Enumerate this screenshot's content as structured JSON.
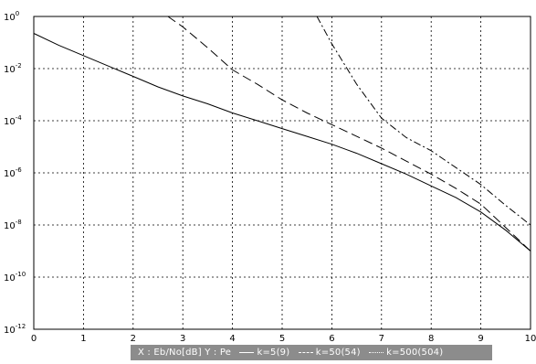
{
  "chart_data": {
    "type": "line",
    "y_scale": "log",
    "xlim": [
      0,
      10
    ],
    "ylim_exponent": [
      -12,
      0
    ],
    "grid": true,
    "x_ticks": [
      "0",
      "1",
      "2",
      "3",
      "4",
      "5",
      "6",
      "7",
      "8",
      "9",
      "10"
    ],
    "y_ticks": [
      {
        "base": "10",
        "exp": "0"
      },
      {
        "base": "10",
        "exp": "-2"
      },
      {
        "base": "10",
        "exp": "-4"
      },
      {
        "base": "10",
        "exp": "-6"
      },
      {
        "base": "10",
        "exp": "-8"
      },
      {
        "base": "10",
        "exp": "-10"
      },
      {
        "base": "10",
        "exp": "-12"
      }
    ],
    "legend_text": {
      "axes": "X : Eb/No[dB]   Y : Pe",
      "s1": "k=5(9)",
      "s2": "k=50(54)",
      "s3": "k=500(504)"
    },
    "series": [
      {
        "name": "k=5(9)",
        "style": "solid",
        "x": [
          0,
          0.5,
          1,
          1.5,
          2,
          2.5,
          3,
          3.5,
          4,
          4.5,
          5,
          5.5,
          6,
          6.5,
          7,
          7.5,
          8,
          8.5,
          9,
          9.5,
          10
        ],
        "log10_y": [
          -0.65,
          -1.1,
          -1.5,
          -1.9,
          -2.3,
          -2.7,
          -3.05,
          -3.35,
          -3.7,
          -4.0,
          -4.3,
          -4.6,
          -4.9,
          -5.25,
          -5.65,
          -6.05,
          -6.5,
          -6.95,
          -7.5,
          -8.2,
          -9.0
        ]
      },
      {
        "name": "k=50(54)",
        "style": "dashed",
        "x": [
          2.7,
          3,
          3.5,
          4,
          4.5,
          5,
          5.5,
          6,
          6.5,
          7,
          7.5,
          8,
          8.5,
          9,
          9.5,
          10
        ],
        "log10_y": [
          0.0,
          -0.4,
          -1.2,
          -2.05,
          -2.6,
          -3.2,
          -3.7,
          -4.15,
          -4.6,
          -5.05,
          -5.55,
          -6.05,
          -6.6,
          -7.2,
          -8.1,
          -9.0
        ]
      },
      {
        "name": "k=500(504)",
        "style": "dashdot",
        "x": [
          5.7,
          6,
          6.5,
          7,
          7.5,
          8,
          8.5,
          9,
          9.5,
          10
        ],
        "log10_y": [
          0.0,
          -1.05,
          -2.6,
          -3.9,
          -4.65,
          -5.15,
          -5.8,
          -6.45,
          -7.25,
          -8.0
        ]
      }
    ]
  }
}
